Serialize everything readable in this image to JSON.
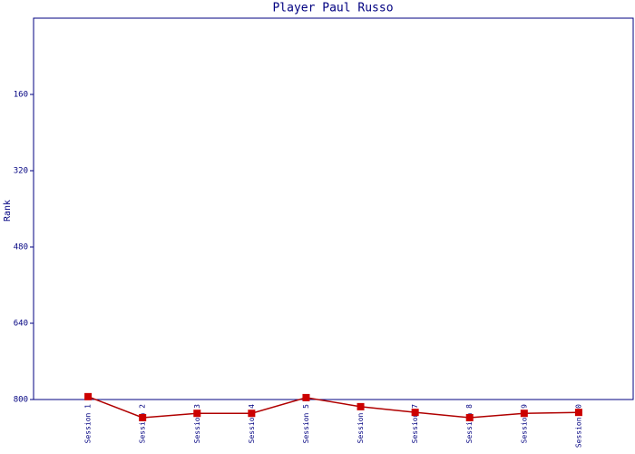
{
  "chart_data": {
    "type": "line",
    "title": "Player Paul Russo",
    "y_label": "Rank",
    "categories": [
      "Session 1",
      "Session 2",
      "Session 3",
      "Session 4",
      "Session 5",
      "Session 6",
      "Session 7",
      "Session 8",
      "Session 9",
      "Session 10"
    ],
    "series": [
      {
        "name": "Rank",
        "color": "#b00000",
        "marker_color": "#cc0000",
        "values": [
          794,
          838,
          829,
          829,
          796,
          815,
          827,
          838,
          829,
          827
        ]
      }
    ],
    "ylim": [
      800,
      0
    ],
    "yticks": [
      160,
      320,
      480,
      640,
      800
    ],
    "axis_color": "#000080"
  }
}
